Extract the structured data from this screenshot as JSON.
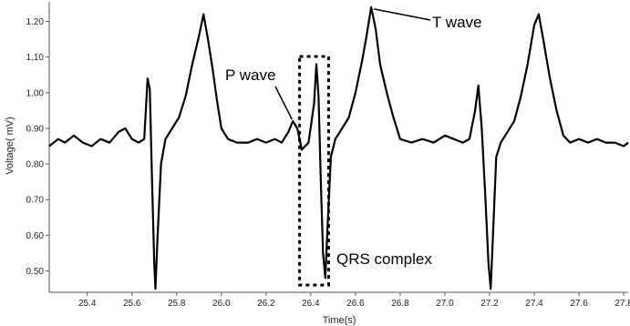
{
  "chart_data": {
    "type": "line",
    "title": "",
    "xlabel": "Time(s)",
    "ylabel": "Voltage( mV)",
    "xlim": [
      25.23,
      27.82
    ],
    "ylim": [
      0.44,
      1.255
    ],
    "x_ticks": [
      25.4,
      25.6,
      25.8,
      26.0,
      26.2,
      26.4,
      26.6,
      26.8,
      27.0,
      27.2,
      27.4,
      27.6,
      27.8
    ],
    "x_tick_labels": [
      "25.4",
      "25.6",
      "25.8",
      "26.0",
      "26.2",
      "26.4",
      "26.6",
      "26.8",
      "27.0",
      "27.2",
      "27.4",
      "27.6",
      "27.8"
    ],
    "y_ticks": [
      0.5,
      0.6,
      0.7,
      0.8,
      0.9,
      1.0,
      1.1,
      1.2
    ],
    "y_tick_labels": [
      "0.50",
      "0.60",
      "0.70",
      "0.80",
      "0.90",
      "1.00",
      "1.10",
      "1.20"
    ],
    "grid": false,
    "series": [
      {
        "color": "#000000",
        "points": [
          [
            25.23,
            0.85
          ],
          [
            25.27,
            0.87
          ],
          [
            25.3,
            0.86
          ],
          [
            25.34,
            0.88
          ],
          [
            25.38,
            0.86
          ],
          [
            25.42,
            0.85
          ],
          [
            25.46,
            0.87
          ],
          [
            25.5,
            0.86
          ],
          [
            25.54,
            0.89
          ],
          [
            25.57,
            0.9
          ],
          [
            25.6,
            0.87
          ],
          [
            25.63,
            0.86
          ],
          [
            25.655,
            0.87
          ],
          [
            25.67,
            1.04
          ],
          [
            25.68,
            1.01
          ],
          [
            25.69,
            0.75
          ],
          [
            25.7,
            0.52
          ],
          [
            25.705,
            0.45
          ],
          [
            25.715,
            0.6
          ],
          [
            25.73,
            0.8
          ],
          [
            25.75,
            0.87
          ],
          [
            25.78,
            0.9
          ],
          [
            25.81,
            0.93
          ],
          [
            25.84,
            0.99
          ],
          [
            25.87,
            1.08
          ],
          [
            25.9,
            1.16
          ],
          [
            25.92,
            1.22
          ],
          [
            25.94,
            1.15
          ],
          [
            25.96,
            1.07
          ],
          [
            25.98,
            0.98
          ],
          [
            26.0,
            0.9
          ],
          [
            26.03,
            0.87
          ],
          [
            26.07,
            0.86
          ],
          [
            26.12,
            0.86
          ],
          [
            26.16,
            0.87
          ],
          [
            26.2,
            0.86
          ],
          [
            26.24,
            0.87
          ],
          [
            26.27,
            0.86
          ],
          [
            26.3,
            0.89
          ],
          [
            26.32,
            0.92
          ],
          [
            26.34,
            0.9
          ],
          [
            26.36,
            0.84
          ],
          [
            26.39,
            0.86
          ],
          [
            26.415,
            0.97
          ],
          [
            26.425,
            1.08
          ],
          [
            26.435,
            0.99
          ],
          [
            26.445,
            0.75
          ],
          [
            26.455,
            0.55
          ],
          [
            26.465,
            0.48
          ],
          [
            26.475,
            0.62
          ],
          [
            26.49,
            0.82
          ],
          [
            26.51,
            0.87
          ],
          [
            26.54,
            0.9
          ],
          [
            26.57,
            0.93
          ],
          [
            26.6,
            1.0
          ],
          [
            26.63,
            1.09
          ],
          [
            26.65,
            1.16
          ],
          [
            26.67,
            1.24
          ],
          [
            26.69,
            1.18
          ],
          [
            26.71,
            1.08
          ],
          [
            26.74,
            1.0
          ],
          [
            26.77,
            0.93
          ],
          [
            26.8,
            0.87
          ],
          [
            26.85,
            0.86
          ],
          [
            26.9,
            0.87
          ],
          [
            26.95,
            0.86
          ],
          [
            27.0,
            0.88
          ],
          [
            27.04,
            0.87
          ],
          [
            27.08,
            0.86
          ],
          [
            27.11,
            0.87
          ],
          [
            27.135,
            0.95
          ],
          [
            27.15,
            1.02
          ],
          [
            27.165,
            0.9
          ],
          [
            27.18,
            0.72
          ],
          [
            27.195,
            0.52
          ],
          [
            27.205,
            0.45
          ],
          [
            27.215,
            0.6
          ],
          [
            27.23,
            0.82
          ],
          [
            27.25,
            0.86
          ],
          [
            27.28,
            0.89
          ],
          [
            27.31,
            0.92
          ],
          [
            27.34,
            0.99
          ],
          [
            27.37,
            1.08
          ],
          [
            27.4,
            1.19
          ],
          [
            27.42,
            1.22
          ],
          [
            27.44,
            1.15
          ],
          [
            27.47,
            1.04
          ],
          [
            27.5,
            0.95
          ],
          [
            27.53,
            0.88
          ],
          [
            27.56,
            0.86
          ],
          [
            27.6,
            0.87
          ],
          [
            27.64,
            0.86
          ],
          [
            27.68,
            0.87
          ],
          [
            27.72,
            0.86
          ],
          [
            27.76,
            0.86
          ],
          [
            27.8,
            0.85
          ],
          [
            27.82,
            0.86
          ]
        ]
      }
    ],
    "annotations": [
      {
        "id": "t-wave",
        "text": "T wave",
        "at": [
          26.67,
          1.24
        ]
      },
      {
        "id": "p-wave",
        "text": "P wave",
        "at": [
          26.32,
          0.92
        ]
      },
      {
        "id": "qrs-complex",
        "text": "QRS complex",
        "box_x": [
          26.35,
          26.48
        ]
      }
    ]
  }
}
